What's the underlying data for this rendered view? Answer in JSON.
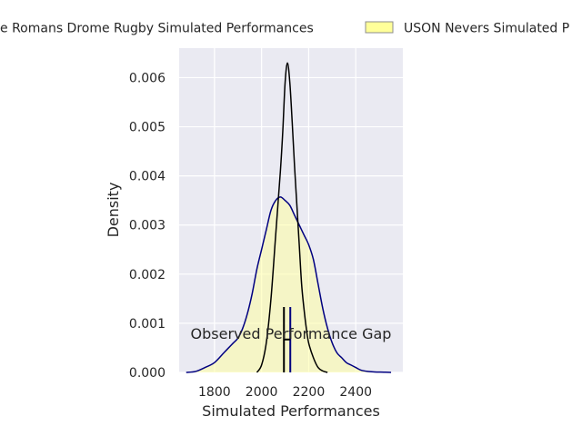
{
  "chart_data": {
    "type": "area",
    "xlabel": "Simulated Performances",
    "ylabel": "Density",
    "xlim": [
      1650,
      2600
    ],
    "ylim": [
      0,
      0.0066
    ],
    "x_ticks": [
      1800,
      2000,
      2200,
      2400
    ],
    "y_ticks": [
      0.0,
      0.001,
      0.002,
      0.003,
      0.004,
      0.005,
      0.006
    ],
    "x_tick_labels": [
      "1800",
      "2000",
      "2200",
      "2400"
    ],
    "y_tick_labels": [
      "0.000",
      "0.001",
      "0.002",
      "0.003",
      "0.004",
      "0.005",
      "0.006"
    ],
    "grid": true,
    "legend_placement": "top, outside",
    "legend": [
      {
        "label": "Valence Romans Drome Rugby Simulated Performances",
        "shown_text": "e Romans Drome Rugby Simulated Performances",
        "style": "line"
      },
      {
        "label": "USON Nevers Simulated Performances",
        "shown_text": "USON Nevers Simulated P",
        "style": "patch"
      }
    ],
    "annotation": "Observed Performance Gap",
    "series": [
      {
        "name": "Valence Romans Drome Rugby Simulated Performances",
        "color": "#000000",
        "fill": false,
        "x": [
          1980,
          2000,
          2020,
          2040,
          2060,
          2080,
          2090,
          2100,
          2110,
          2120,
          2130,
          2140,
          2150,
          2160,
          2170,
          2180,
          2190,
          2200,
          2220,
          2240,
          2260,
          2280
        ],
        "y": [
          0.0,
          0.00015,
          0.0006,
          0.0015,
          0.0028,
          0.0041,
          0.0049,
          0.0059,
          0.0063,
          0.0059,
          0.0051,
          0.0042,
          0.0034,
          0.0026,
          0.0018,
          0.0013,
          0.0009,
          0.0006,
          0.0003,
          0.0001,
          3e-05,
          0.0
        ]
      },
      {
        "name": "USON Nevers Simulated Performances",
        "color": "#000080",
        "fill": true,
        "fill_color": "#ffff99",
        "x": [
          1680,
          1720,
          1760,
          1800,
          1840,
          1860,
          1880,
          1900,
          1920,
          1940,
          1960,
          1980,
          2000,
          2020,
          2040,
          2060,
          2080,
          2100,
          2120,
          2140,
          2160,
          2180,
          2200,
          2220,
          2240,
          2260,
          2280,
          2300,
          2320,
          2340,
          2360,
          2380,
          2400,
          2420,
          2450,
          2480,
          2520,
          2550
        ],
        "y": [
          0.0,
          2e-05,
          0.0001,
          0.0002,
          0.0004,
          0.0005,
          0.0006,
          0.0007,
          0.0009,
          0.0012,
          0.0016,
          0.0021,
          0.0025,
          0.0029,
          0.0033,
          0.0035,
          0.00357,
          0.0035,
          0.0034,
          0.0032,
          0.003,
          0.0028,
          0.0026,
          0.0023,
          0.0018,
          0.0013,
          0.0009,
          0.0006,
          0.0004,
          0.0003,
          0.0002,
          0.00015,
          0.0001,
          5e-05,
          2e-05,
          1e-05,
          5e-06,
          0.0
        ]
      }
    ],
    "markers": [
      {
        "x": 2095,
        "color": "#000000",
        "y_top": 0.00133
      },
      {
        "x": 2122,
        "color": "#000080",
        "y_top": 0.00133
      }
    ],
    "gap_bar": {
      "x1": 2095,
      "x2": 2122,
      "y": 0.00067,
      "color": "#000000"
    }
  }
}
